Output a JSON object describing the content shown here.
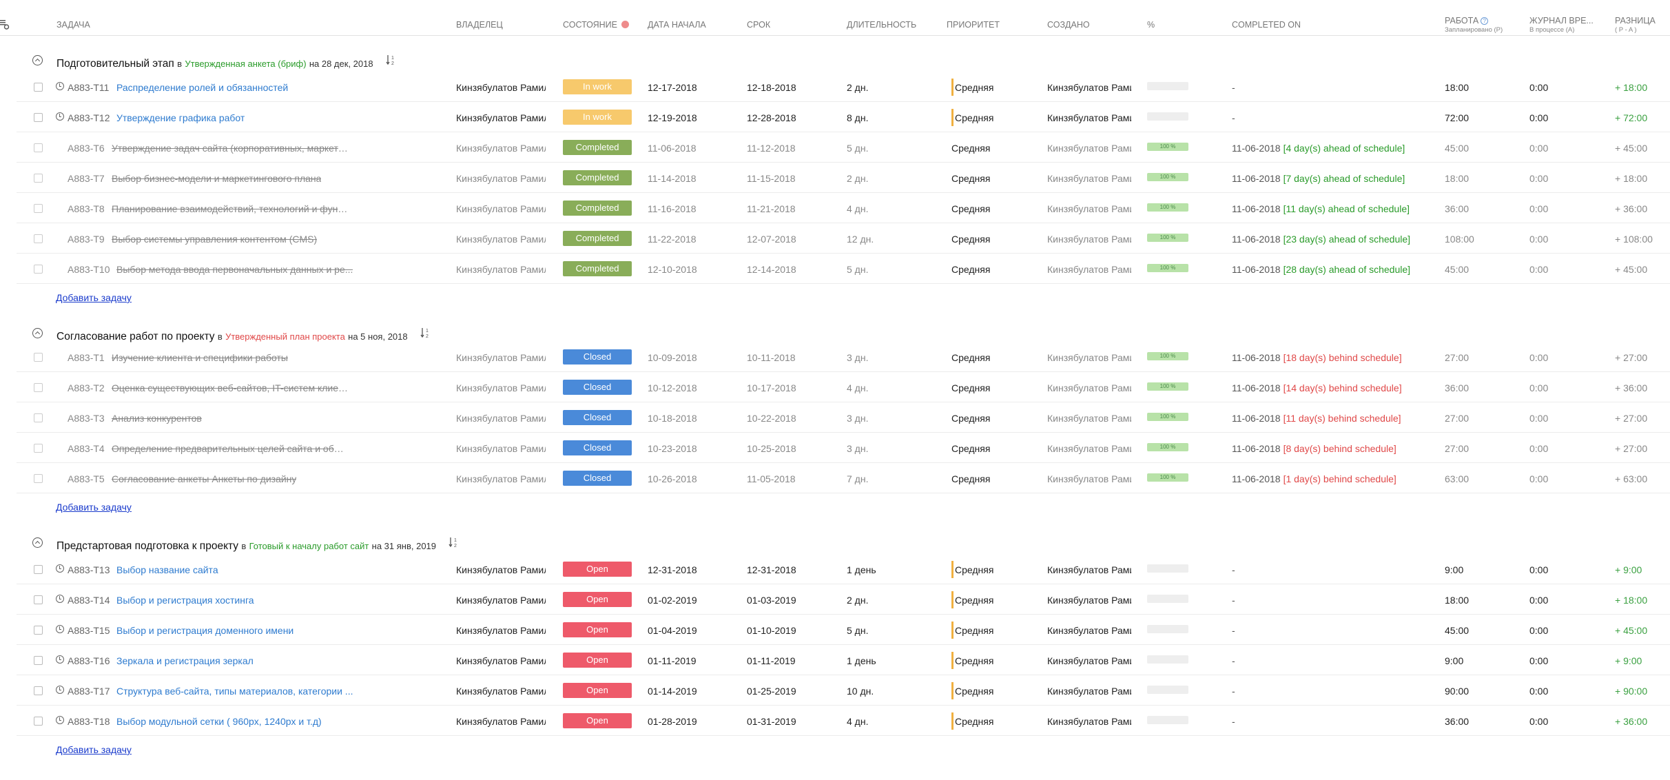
{
  "header": {
    "task": "ЗАДАЧА",
    "owner": "ВЛАДЕЛЕЦ",
    "status": "СОСТОЯНИЕ",
    "start": "ДАТА НАЧАЛА",
    "due": "СРОК",
    "duration": "ДЛИТЕЛЬНОСТЬ",
    "priority": "ПРИОРИТЕТ",
    "created": "СОЗДАНО",
    "percent": "%",
    "completed_on": "COMPLETED ON",
    "work": "РАБОТА",
    "work_sub": "Запланировано (P)",
    "log": "ЖУРНАЛ ВРЕ...",
    "log_sub": "В процессе (A)",
    "diff": "РАЗНИЦА",
    "diff_sub": "( P - A )"
  },
  "add_task_label": "Добавить задачу",
  "colors": {
    "in_work": "#f7c96c",
    "completed": "#89ad59",
    "closed": "#4a8ad9",
    "open": "#ee5a6a",
    "milestone_green": "#2a9b2a",
    "milestone_red": "#e04848"
  },
  "groups": [
    {
      "title": "Подготовительный этап",
      "in": "в",
      "milestone": "Утвержденная анкета (бриф)",
      "milestone_color": "#2a9b2a",
      "on": "на 28 дек, 2018",
      "tasks": [
        {
          "id": "A883-T11",
          "name": "Распределение ролей и обязанностей",
          "owner": "Кинзябулатов Рамиль",
          "status": "In work",
          "status_key": "in_work",
          "start": "12-17-2018",
          "due": "12-18-2018",
          "duration": "2 дн.",
          "priority": "Средняя",
          "creator": "Кинзябулатов Рамиль",
          "percent": "",
          "completed_on": "-",
          "note": "",
          "note_type": "",
          "work": "18:00",
          "log": "0:00",
          "diff": "+ 18:00",
          "done": false
        },
        {
          "id": "A883-T12",
          "name": "Утверждение графика работ",
          "owner": "Кинзябулатов Рамиль",
          "status": "In work",
          "status_key": "in_work",
          "start": "12-19-2018",
          "due": "12-28-2018",
          "duration": "8 дн.",
          "priority": "Средняя",
          "creator": "Кинзябулатов Рамиль",
          "percent": "",
          "completed_on": "-",
          "note": "",
          "note_type": "",
          "work": "72:00",
          "log": "0:00",
          "diff": "+ 72:00",
          "done": false
        },
        {
          "id": "A883-T6",
          "name": "Утверждение задач сайта (корпоративных, маркети...",
          "owner": "Кинзябулатов Рамиль",
          "status": "Completed",
          "status_key": "completed",
          "start": "11-06-2018",
          "due": "11-12-2018",
          "duration": "5 дн.",
          "priority": "Средняя",
          "creator": "Кинзябулатов Рамиль",
          "percent": "100 %",
          "completed_on": "11-06-2018",
          "note": "[4 day(s) ahead of schedule]",
          "note_type": "ahead",
          "work": "45:00",
          "log": "0:00",
          "diff": "+ 45:00",
          "done": true
        },
        {
          "id": "A883-T7",
          "name": "Выбор бизнес-модели и маркетингового плана",
          "owner": "Кинзябулатов Рамиль",
          "status": "Completed",
          "status_key": "completed",
          "start": "11-14-2018",
          "due": "11-15-2018",
          "duration": "2 дн.",
          "priority": "Средняя",
          "creator": "Кинзябулатов Рамиль",
          "percent": "100 %",
          "completed_on": "11-06-2018",
          "note": "[7 day(s) ahead of schedule]",
          "note_type": "ahead",
          "work": "18:00",
          "log": "0:00",
          "diff": "+ 18:00",
          "done": true
        },
        {
          "id": "A883-T8",
          "name": "Планирование взаимодействий, технологий и функ...",
          "owner": "Кинзябулатов Рамиль",
          "status": "Completed",
          "status_key": "completed",
          "start": "11-16-2018",
          "due": "11-21-2018",
          "duration": "4 дн.",
          "priority": "Средняя",
          "creator": "Кинзябулатов Рамиль",
          "percent": "100 %",
          "completed_on": "11-06-2018",
          "note": "[11 day(s) ahead of schedule]",
          "note_type": "ahead",
          "work": "36:00",
          "log": "0:00",
          "diff": "+ 36:00",
          "done": true
        },
        {
          "id": "A883-T9",
          "name": "Выбор системы управления контентом (CMS)",
          "owner": "Кинзябулатов Рамиль",
          "status": "Completed",
          "status_key": "completed",
          "start": "11-22-2018",
          "due": "12-07-2018",
          "duration": "12 дн.",
          "priority": "Средняя",
          "creator": "Кинзябулатов Рамиль",
          "percent": "100 %",
          "completed_on": "11-06-2018",
          "note": "[23 day(s) ahead of schedule]",
          "note_type": "ahead",
          "work": "108:00",
          "log": "0:00",
          "diff": "+ 108:00",
          "done": true
        },
        {
          "id": "A883-T10",
          "name": "Выбор метода ввода первоначальных данных и ре...",
          "owner": "Кинзябулатов Рамиль",
          "status": "Completed",
          "status_key": "completed",
          "start": "12-10-2018",
          "due": "12-14-2018",
          "duration": "5 дн.",
          "priority": "Средняя",
          "creator": "Кинзябулатов Рамиль",
          "percent": "100 %",
          "completed_on": "11-06-2018",
          "note": "[28 day(s) ahead of schedule]",
          "note_type": "ahead",
          "work": "45:00",
          "log": "0:00",
          "diff": "+ 45:00",
          "done": true
        }
      ]
    },
    {
      "title": "Согласование работ по проекту",
      "in": "в",
      "milestone": "Утвержденный план проекта",
      "milestone_color": "#e04848",
      "on": "на 5 ноя, 2018",
      "tasks": [
        {
          "id": "A883-T1",
          "name": "Изучение клиента и специфики работы",
          "owner": "Кинзябулатов Рамиль",
          "status": "Closed",
          "status_key": "closed",
          "start": "10-09-2018",
          "due": "10-11-2018",
          "duration": "3 дн.",
          "priority": "Средняя",
          "creator": "Кинзябулатов Рамиль",
          "percent": "100 %",
          "completed_on": "11-06-2018",
          "note": "[18 day(s) behind schedule]",
          "note_type": "behind",
          "work": "27:00",
          "log": "0:00",
          "diff": "+ 27:00",
          "done": true
        },
        {
          "id": "A883-T2",
          "name": "Оценка существующих веб-сайтов, IT-систем клиента",
          "owner": "Кинзябулатов Рамиль",
          "status": "Closed",
          "status_key": "closed",
          "start": "10-12-2018",
          "due": "10-17-2018",
          "duration": "4 дн.",
          "priority": "Средняя",
          "creator": "Кинзябулатов Рамиль",
          "percent": "100 %",
          "completed_on": "11-06-2018",
          "note": "[14 day(s) behind schedule]",
          "note_type": "behind",
          "work": "36:00",
          "log": "0:00",
          "diff": "+ 36:00",
          "done": true
        },
        {
          "id": "A883-T3",
          "name": "Анализ конкурентов",
          "owner": "Кинзябулатов Рамиль",
          "status": "Closed",
          "status_key": "closed",
          "start": "10-18-2018",
          "due": "10-22-2018",
          "duration": "3 дн.",
          "priority": "Средняя",
          "creator": "Кинзябулатов Рамиль",
          "percent": "100 %",
          "completed_on": "11-06-2018",
          "note": "[11 day(s) behind schedule]",
          "note_type": "behind",
          "work": "27:00",
          "log": "0:00",
          "diff": "+ 27:00",
          "done": true
        },
        {
          "id": "A883-T4",
          "name": "Определение предварительных целей сайта и общ...",
          "owner": "Кинзябулатов Рамиль",
          "status": "Closed",
          "status_key": "closed",
          "start": "10-23-2018",
          "due": "10-25-2018",
          "duration": "3 дн.",
          "priority": "Средняя",
          "creator": "Кинзябулатов Рамиль",
          "percent": "100 %",
          "completed_on": "11-06-2018",
          "note": "[8 day(s) behind schedule]",
          "note_type": "behind",
          "work": "27:00",
          "log": "0:00",
          "diff": "+ 27:00",
          "done": true
        },
        {
          "id": "A883-T5",
          "name": "Согласование анкеты Анкеты по дизайну",
          "owner": "Кинзябулатов Рамиль",
          "status": "Closed",
          "status_key": "closed",
          "start": "10-26-2018",
          "due": "11-05-2018",
          "duration": "7 дн.",
          "priority": "Средняя",
          "creator": "Кинзябулатов Рамиль",
          "percent": "100 %",
          "completed_on": "11-06-2018",
          "note": "[1 day(s) behind schedule]",
          "note_type": "behind",
          "work": "63:00",
          "log": "0:00",
          "diff": "+ 63:00",
          "done": true
        }
      ]
    },
    {
      "title": "Предстартовая подготовка к проекту",
      "in": "в",
      "milestone": "Готовый к началу работ сайт",
      "milestone_color": "#2a9b2a",
      "on": "на 31 янв, 2019",
      "tasks": [
        {
          "id": "A883-T13",
          "name": "Выбор название сайта",
          "owner": "Кинзябулатов Рамиль",
          "status": "Open",
          "status_key": "open",
          "start": "12-31-2018",
          "due": "12-31-2018",
          "duration": "1 день",
          "priority": "Средняя",
          "creator": "Кинзябулатов Рамиль",
          "percent": "",
          "completed_on": "-",
          "note": "",
          "note_type": "",
          "work": "9:00",
          "log": "0:00",
          "diff": "+ 9:00",
          "done": false
        },
        {
          "id": "A883-T14",
          "name": "Выбор и регистрация хостинга",
          "owner": "Кинзябулатов Рамиль",
          "status": "Open",
          "status_key": "open",
          "start": "01-02-2019",
          "due": "01-03-2019",
          "duration": "2 дн.",
          "priority": "Средняя",
          "creator": "Кинзябулатов Рамиль",
          "percent": "",
          "completed_on": "-",
          "note": "",
          "note_type": "",
          "work": "18:00",
          "log": "0:00",
          "diff": "+ 18:00",
          "done": false
        },
        {
          "id": "A883-T15",
          "name": "Выбор и регистрация доменного имени",
          "owner": "Кинзябулатов Рамиль",
          "status": "Open",
          "status_key": "open",
          "start": "01-04-2019",
          "due": "01-10-2019",
          "duration": "5 дн.",
          "priority": "Средняя",
          "creator": "Кинзябулатов Рамиль",
          "percent": "",
          "completed_on": "-",
          "note": "",
          "note_type": "",
          "work": "45:00",
          "log": "0:00",
          "diff": "+ 45:00",
          "done": false
        },
        {
          "id": "A883-T16",
          "name": "Зеркала и регистрация зеркал",
          "owner": "Кинзябулатов Рамиль",
          "status": "Open",
          "status_key": "open",
          "start": "01-11-2019",
          "due": "01-11-2019",
          "duration": "1 день",
          "priority": "Средняя",
          "creator": "Кинзябулатов Рамиль",
          "percent": "",
          "completed_on": "-",
          "note": "",
          "note_type": "",
          "work": "9:00",
          "log": "0:00",
          "diff": "+ 9:00",
          "done": false
        },
        {
          "id": "A883-T17",
          "name": "Структура веб-сайта, типы материалов, категории ...",
          "owner": "Кинзябулатов Рамиль",
          "status": "Open",
          "status_key": "open",
          "start": "01-14-2019",
          "due": "01-25-2019",
          "duration": "10 дн.",
          "priority": "Средняя",
          "creator": "Кинзябулатов Рамиль",
          "percent": "",
          "completed_on": "-",
          "note": "",
          "note_type": "",
          "work": "90:00",
          "log": "0:00",
          "diff": "+ 90:00",
          "done": false
        },
        {
          "id": "A883-T18",
          "name": "Выбор модульной сетки ( 960px, 1240px и т.д)",
          "owner": "Кинзябулатов Рамиль",
          "status": "Open",
          "status_key": "open",
          "start": "01-28-2019",
          "due": "01-31-2019",
          "duration": "4 дн.",
          "priority": "Средняя",
          "creator": "Кинзябулатов Рамиль",
          "percent": "",
          "completed_on": "-",
          "note": "",
          "note_type": "",
          "work": "36:00",
          "log": "0:00",
          "diff": "+ 36:00",
          "done": false
        }
      ]
    }
  ]
}
